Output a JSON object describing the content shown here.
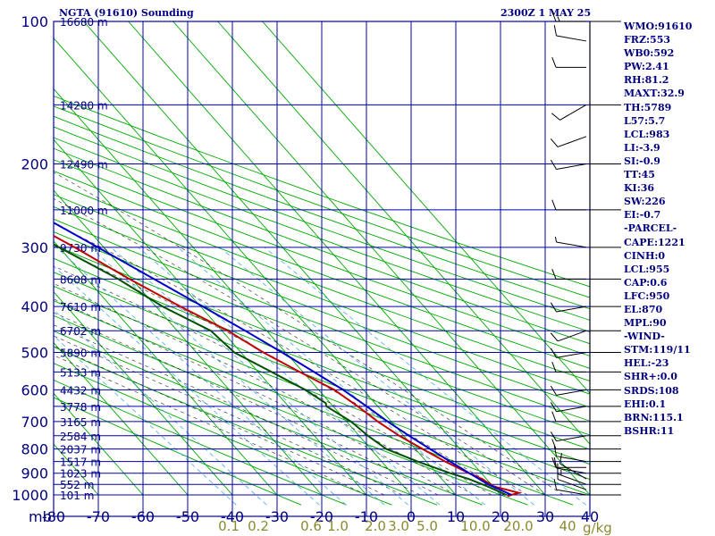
{
  "header": {
    "station": "NGTA (91610) Sounding",
    "time": "2300Z  1 MAY 25"
  },
  "indices": [
    "WMO:91610",
    "FRZ:553",
    "WB0:592",
    "PW:2.41",
    "RH:81.2",
    "MAXT:32.9",
    "TH:5789",
    "L57:5.7",
    "LCL:983",
    "LI:-3.9",
    "SI:-0.9",
    "TT:45",
    "KI:36",
    "SW:226",
    "EI:-0.7",
    "-PARCEL-",
    "CAPE:1221",
    "CINH:0",
    "LCL:955",
    "CAP:0.6",
    "LFC:950",
    "EL:870",
    "MPL:90",
    "-WIND-",
    "STM:119/11",
    "HEL:-23",
    "SHR+:0.0",
    "SRDS:108",
    "EHI:0.1",
    "BRN:115.1",
    "BSHR:11"
  ],
  "colors": {
    "grid": "#0000aa",
    "isotherm_dry_adiabat": "#00aa00",
    "temperature": "#c00000",
    "dewpoint": "#005000",
    "parcel": "#0000c8",
    "mixing_ratio": "#4aa8e0",
    "moist_adiabat": "#000000",
    "axis_text": "#000080",
    "mixing_label": "#8a8a30"
  },
  "chart_data": {
    "type": "skew-t log-p sounding",
    "title": "NGTA (91610) Sounding",
    "y_axis": {
      "unit": "mb",
      "scale": "log",
      "range": [
        1000,
        100
      ],
      "ticks": [
        100,
        200,
        300,
        400,
        500,
        600,
        700,
        800,
        900,
        1000
      ],
      "tick_labels": [
        "100",
        "200",
        "300",
        "400",
        "500",
        "600",
        "700",
        "800",
        "900",
        "1000"
      ]
    },
    "x_axis": {
      "unit": "°C",
      "corner_label": "mb",
      "range": [
        -80,
        40
      ],
      "ticks": [
        -80,
        -70,
        -60,
        -50,
        -40,
        -30,
        -20,
        -10,
        0,
        10,
        20,
        30,
        40
      ],
      "tick_labels": [
        "-80",
        "-70",
        "-60",
        "-50",
        "-40",
        "-30",
        "-20",
        "-10",
        "0",
        "10",
        "20",
        "30",
        "40"
      ]
    },
    "heights": [
      {
        "p": 100,
        "label": "16680 m"
      },
      {
        "p": 150,
        "label": "14280 m"
      },
      {
        "p": 200,
        "label": "12490 m"
      },
      {
        "p": 250,
        "label": "11000 m"
      },
      {
        "p": 300,
        "label": "9730 m"
      },
      {
        "p": 350,
        "label": "8608 m"
      },
      {
        "p": 400,
        "label": "7610 m"
      },
      {
        "p": 450,
        "label": "6702 m"
      },
      {
        "p": 500,
        "label": "5890 m"
      },
      {
        "p": 550,
        "label": "5133 m"
      },
      {
        "p": 600,
        "label": "4432 m"
      },
      {
        "p": 650,
        "label": "3778 m"
      },
      {
        "p": 700,
        "label": "3165 m"
      },
      {
        "p": 750,
        "label": "2584 m"
      },
      {
        "p": 800,
        "label": "2037 m"
      },
      {
        "p": 850,
        "label": "1517 m"
      },
      {
        "p": 900,
        "label": "1023 m"
      },
      {
        "p": 950,
        "label": "552 m"
      },
      {
        "p": 1000,
        "label": "101 m"
      }
    ],
    "mixing_ratio_labels": [
      {
        "label": "0.1",
        "value": 0.1
      },
      {
        "label": "0.2",
        "value": 0.2
      },
      {
        "label": "0.6",
        "value": 0.6
      },
      {
        "label": "1.0",
        "value": 1.0
      },
      {
        "label": "2.0",
        "value": 2.0
      },
      {
        "label": "3.0",
        "value": 3.0
      },
      {
        "label": "5.0",
        "value": 5.0
      },
      {
        "label": "10.0",
        "value": 10.0
      },
      {
        "label": "20.0",
        "value": 20.0
      },
      {
        "label": "40",
        "value": 40
      }
    ],
    "mixing_ratio_unit": "g/kg",
    "series": [
      {
        "key": "temperature",
        "points": [
          [
            1006,
            21.3
          ],
          [
            1000,
            22.4
          ],
          [
            990,
            24.5
          ],
          [
            960,
            20.2
          ],
          [
            925,
            19.0
          ],
          [
            900,
            17.2
          ],
          [
            850,
            14.2
          ],
          [
            800,
            11.6
          ],
          [
            750,
            9.0
          ],
          [
            700,
            7.0
          ],
          [
            650,
            5.5
          ],
          [
            600,
            3.5
          ],
          [
            550,
            -0.7
          ],
          [
            500,
            -5.0
          ],
          [
            450,
            -8.7
          ],
          [
            400,
            -14.5
          ],
          [
            350,
            -20.5
          ],
          [
            300,
            -26.5
          ],
          [
            250,
            -34.5
          ],
          [
            200,
            -44.0
          ],
          [
            175,
            -50.0
          ],
          [
            150,
            -55.7
          ],
          [
            130,
            -63.0
          ],
          [
            115,
            -72.5
          ],
          [
            100,
            -77.0
          ]
        ]
      },
      {
        "key": "dewpoint",
        "points": [
          [
            1000,
            21.3
          ],
          [
            960,
            18.8
          ],
          [
            925,
            16.0
          ],
          [
            900,
            13.0
          ],
          [
            850,
            8.0
          ],
          [
            800,
            3.5
          ],
          [
            750,
            2.0
          ],
          [
            700,
            1.0
          ],
          [
            650,
            -1.5
          ],
          [
            640,
            -1.0
          ],
          [
            620,
            -2.0
          ],
          [
            600,
            -3.0
          ],
          [
            550,
            -7.0
          ],
          [
            500,
            -11.5
          ],
          [
            450,
            -12.5
          ],
          [
            400,
            -18.5
          ],
          [
            350,
            -23.0
          ],
          [
            300,
            -30.0
          ],
          [
            250,
            -38.0
          ],
          [
            200,
            -48.0
          ],
          [
            175,
            -54.0
          ],
          [
            150,
            -60.5
          ],
          [
            130,
            -68.5
          ],
          [
            115,
            -77.0
          ]
        ]
      },
      {
        "key": "parcel",
        "points": [
          [
            1000,
            22.5
          ],
          [
            950,
            19.3
          ],
          [
            900,
            17.3
          ],
          [
            850,
            15.3
          ],
          [
            800,
            13.3
          ],
          [
            750,
            11.2
          ],
          [
            700,
            9.2
          ],
          [
            650,
            7.5
          ],
          [
            600,
            5.5
          ],
          [
            550,
            2.5
          ],
          [
            500,
            -0.8
          ],
          [
            450,
            -4.8
          ],
          [
            400,
            -9.5
          ],
          [
            350,
            -15.0
          ],
          [
            300,
            -21.3
          ],
          [
            250,
            -29.0
          ],
          [
            200,
            -38.5
          ],
          [
            175,
            -44.5
          ],
          [
            150,
            -51.5
          ],
          [
            125,
            -60.0
          ],
          [
            110,
            -67.0
          ]
        ]
      }
    ],
    "wind_barbs": [
      {
        "p": 1000,
        "dir": 100,
        "spd": 10
      },
      {
        "p": 975,
        "dir": 110,
        "spd": 10
      },
      {
        "p": 950,
        "dir": 110,
        "spd": 15
      },
      {
        "p": 925,
        "dir": 120,
        "spd": 10
      },
      {
        "p": 900,
        "dir": 100,
        "spd": 10
      },
      {
        "p": 875,
        "dir": 90,
        "spd": 10
      },
      {
        "p": 850,
        "dir": 100,
        "spd": 10
      },
      {
        "p": 800,
        "dir": 90,
        "spd": 10
      },
      {
        "p": 750,
        "dir": 80,
        "spd": 10
      },
      {
        "p": 700,
        "dir": 90,
        "spd": 10
      },
      {
        "p": 650,
        "dir": 80,
        "spd": 10
      },
      {
        "p": 600,
        "dir": 80,
        "spd": 10
      },
      {
        "p": 550,
        "dir": 90,
        "spd": 10
      },
      {
        "p": 500,
        "dir": 80,
        "spd": 10
      },
      {
        "p": 450,
        "dir": 70,
        "spd": 10
      },
      {
        "p": 400,
        "dir": 80,
        "spd": 10
      },
      {
        "p": 350,
        "dir": 90,
        "spd": 10
      },
      {
        "p": 300,
        "dir": 100,
        "spd": 5
      },
      {
        "p": 250,
        "dir": 90,
        "spd": 10
      },
      {
        "p": 200,
        "dir": 80,
        "spd": 10
      },
      {
        "p": 175,
        "dir": 70,
        "spd": 10
      },
      {
        "p": 150,
        "dir": 60,
        "spd": 10
      },
      {
        "p": 125,
        "dir": 90,
        "spd": 10
      },
      {
        "p": 110,
        "dir": 100,
        "spd": 10
      },
      {
        "p": 100,
        "dir": 90,
        "spd": 15
      }
    ]
  }
}
